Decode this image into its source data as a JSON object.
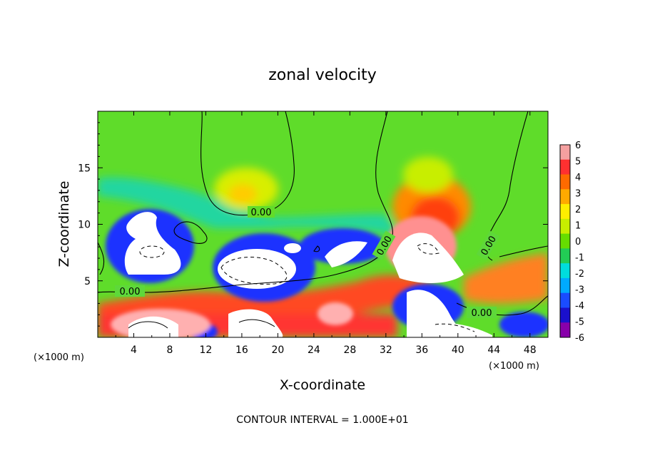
{
  "chart_data": {
    "type": "heatmap",
    "title": "zonal velocity",
    "xlabel": "X-coordinate",
    "ylabel": "Z-coordinate",
    "x_unit_label": "(×1000 m)",
    "x_unit_label_right": "(×1000 m)",
    "xlim": [
      0,
      50
    ],
    "ylim": [
      0,
      20
    ],
    "x_ticks": [
      4,
      8,
      12,
      16,
      20,
      24,
      28,
      32,
      36,
      40,
      44,
      48
    ],
    "y_ticks": [
      5,
      10,
      15
    ],
    "colorbar": {
      "ticks": [
        6,
        5,
        4,
        3,
        2,
        1,
        0,
        -1,
        -2,
        -3,
        -4,
        -5,
        -6
      ],
      "colors": [
        "#f5a0a0",
        "#ff3030",
        "#ff6a00",
        "#ffaa00",
        "#ffee00",
        "#c8ee00",
        "#66dd00",
        "#22cc55",
        "#00dddd",
        "#00aaff",
        "#1a4cff",
        "#1a10cc",
        "#8800aa"
      ]
    },
    "contour_labels": [
      "0.00",
      "0.00",
      "0.00",
      "0.00",
      "0.00"
    ],
    "footer": "CONTOUR INTERVAL = 1.000E+01"
  }
}
